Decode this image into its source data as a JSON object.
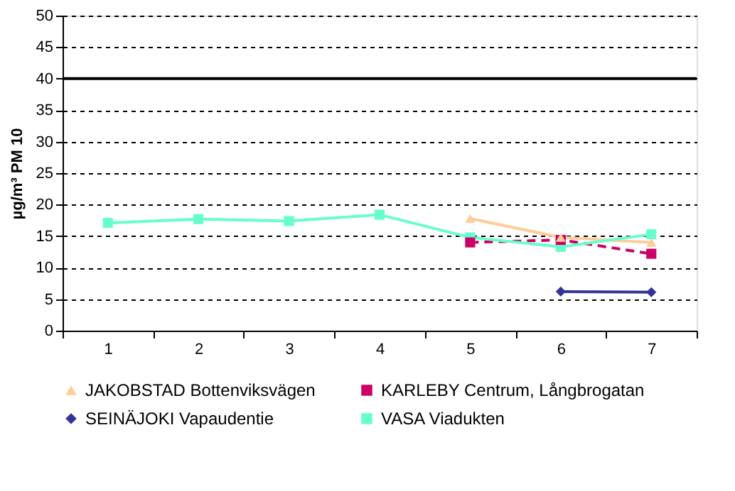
{
  "chart_data": {
    "type": "line",
    "ylabel": "µg/m³ PM 10",
    "categories": [
      "1",
      "2",
      "3",
      "4",
      "5",
      "6",
      "7"
    ],
    "series": [
      {
        "name": "JAKOBSTAD Bottenviksvägen",
        "color": "#ffcc99",
        "marker": "triangle",
        "line_style": "solid",
        "values": [
          null,
          null,
          null,
          null,
          17.8,
          14.8,
          14.0
        ]
      },
      {
        "name": "KARLEBY Centrum, Långbrogatan",
        "color": "#cc0066",
        "marker": "square",
        "line_style": "dashed",
        "values": [
          null,
          null,
          null,
          null,
          14.0,
          14.4,
          12.2
        ]
      },
      {
        "name": "SEINÄJOKI Vapaudentie",
        "color": "#333399",
        "marker": "diamond",
        "line_style": "solid",
        "values": [
          null,
          null,
          null,
          null,
          null,
          6.2,
          6.1
        ]
      },
      {
        "name": "VASA Viadukten",
        "color": "#66ffcc",
        "marker": "square",
        "line_style": "solid",
        "values": [
          17.1,
          17.7,
          17.4,
          18.4,
          14.8,
          13.3,
          15.3
        ]
      }
    ],
    "ylim": [
      0,
      50
    ],
    "yticks": [
      0,
      5,
      10,
      15,
      20,
      25,
      30,
      35,
      40,
      45,
      50
    ],
    "grid": "y",
    "legend": "bottom",
    "ref_lines": [
      {
        "axis": "y",
        "value": 40,
        "color": "#000000",
        "line_style": "solid"
      }
    ]
  }
}
